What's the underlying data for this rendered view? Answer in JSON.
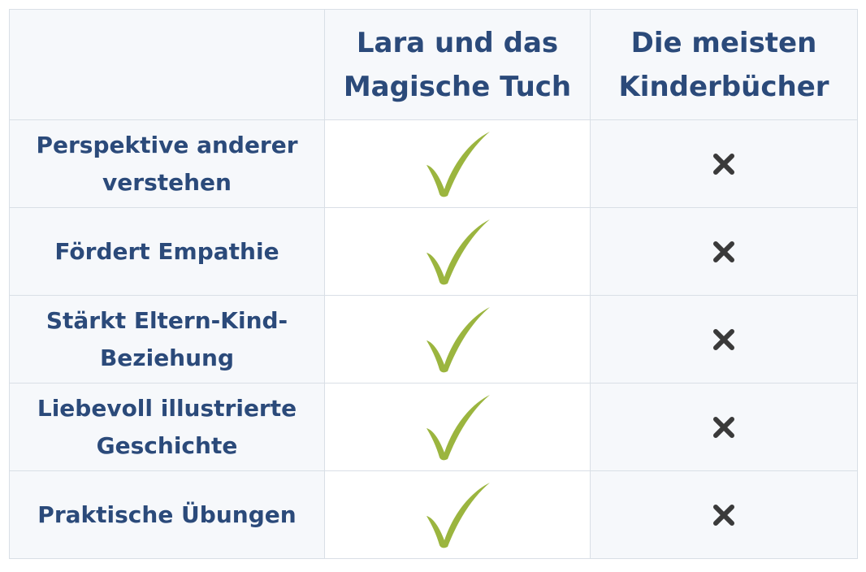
{
  "table": {
    "header": {
      "feature_column": "",
      "col_a": "Lara und das Magische Tuch",
      "col_b": "Die meisten Kinderbücher"
    },
    "rows": [
      {
        "feature": "Perspektive anderer verstehen",
        "col_a": "check-icon",
        "col_b": "cross-icon"
      },
      {
        "feature": "Fördert Empathie",
        "col_a": "check-icon",
        "col_b": "cross-icon"
      },
      {
        "feature": "Stärkt Eltern-Kind-Beziehung",
        "col_a": "check-icon",
        "col_b": "cross-icon"
      },
      {
        "feature": "Liebevoll illustrierte Geschichte",
        "col_a": "check-icon",
        "col_b": "cross-icon"
      },
      {
        "feature": "Praktische Übungen",
        "col_a": "check-icon",
        "col_b": "cross-icon"
      }
    ]
  },
  "colors": {
    "text": "#2b4a7a",
    "check": "#9bb53f",
    "cross": "#3a3a3a",
    "shaded_cell": "#f6f8fb",
    "border": "#d9dfe6"
  }
}
